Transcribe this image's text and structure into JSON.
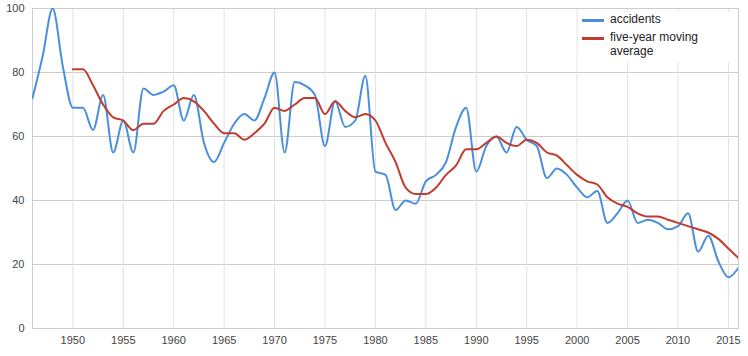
{
  "chart_data": {
    "type": "line",
    "x": [
      1946,
      1947,
      1948,
      1949,
      1950,
      1951,
      1952,
      1953,
      1954,
      1955,
      1956,
      1957,
      1958,
      1959,
      1960,
      1961,
      1962,
      1963,
      1964,
      1965,
      1966,
      1967,
      1968,
      1969,
      1970,
      1971,
      1972,
      1973,
      1974,
      1975,
      1976,
      1977,
      1978,
      1979,
      1980,
      1981,
      1982,
      1983,
      1984,
      1985,
      1986,
      1987,
      1988,
      1989,
      1990,
      1991,
      1992,
      1993,
      1994,
      1995,
      1996,
      1997,
      1998,
      1999,
      2000,
      2001,
      2002,
      2003,
      2004,
      2005,
      2006,
      2007,
      2008,
      2009,
      2010,
      2011,
      2012,
      2013,
      2014,
      2015,
      2016
    ],
    "series": [
      {
        "name": "accidents",
        "color": "#4a8fdb",
        "values": [
          72,
          85,
          100,
          82,
          69,
          69,
          62,
          73,
          55,
          65,
          55,
          75,
          73,
          74,
          76,
          65,
          73,
          58,
          52,
          58,
          64,
          67,
          65,
          72,
          80,
          55,
          77,
          76,
          73,
          57,
          71,
          63,
          65,
          79,
          49,
          48,
          37,
          40,
          39,
          46,
          48,
          52,
          63,
          69,
          49,
          57,
          60,
          55,
          63,
          59,
          57,
          47,
          50,
          48,
          44,
          41,
          43,
          33,
          36,
          40,
          33,
          34,
          33,
          31,
          32,
          36,
          24,
          29,
          21,
          16,
          19
        ]
      },
      {
        "name": "five-year moving average",
        "color": "#c23b2e",
        "values": [
          null,
          null,
          null,
          null,
          81,
          81,
          76,
          70,
          66,
          65,
          62,
          64,
          64,
          68,
          70,
          72,
          71,
          68,
          64,
          61,
          61,
          59,
          61,
          64,
          69,
          68,
          70,
          72,
          72,
          67,
          71,
          68,
          66,
          67,
          65,
          58,
          52,
          44,
          42,
          42,
          44,
          48,
          51,
          56,
          56,
          58,
          60,
          58,
          57,
          59,
          58,
          55,
          54,
          51,
          48,
          46,
          45,
          41,
          39,
          38,
          36,
          35,
          35,
          34,
          33,
          32,
          31,
          30,
          28,
          25,
          22
        ]
      }
    ],
    "xlim": [
      1946,
      2016
    ],
    "xticks": [
      1950,
      1955,
      1960,
      1965,
      1970,
      1975,
      1980,
      1985,
      1990,
      1995,
      2000,
      2005,
      2010,
      2015
    ],
    "ylim": [
      0,
      100
    ],
    "yticks": [
      0,
      20,
      40,
      60,
      80,
      100
    ],
    "grid": true,
    "legend": "top-right"
  }
}
